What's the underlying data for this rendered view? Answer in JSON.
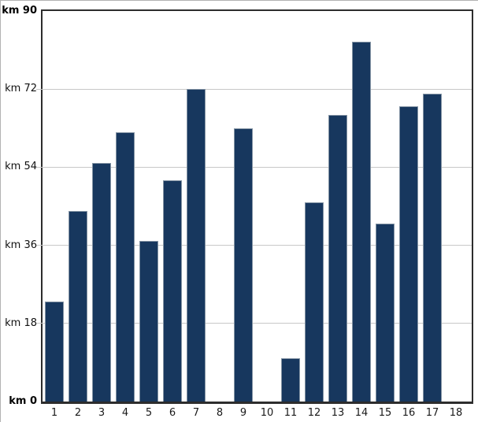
{
  "chart_data": {
    "type": "bar",
    "title": "",
    "unit": "km",
    "categories": [
      "1",
      "2",
      "3",
      "4",
      "5",
      "6",
      "7",
      "8",
      "9",
      "10",
      "11",
      "12",
      "13",
      "14",
      "15",
      "16",
      "17",
      "18"
    ],
    "values": [
      23,
      44,
      55,
      62,
      37,
      51,
      72,
      null,
      63,
      null,
      10,
      46,
      66,
      83,
      41,
      68,
      71,
      null
    ],
    "ylim": [
      0,
      90
    ],
    "yticks": [
      {
        "value": 0,
        "label": "km 0",
        "bold": true
      },
      {
        "value": 18,
        "label": "km 18",
        "bold": false
      },
      {
        "value": 36,
        "label": "km 36",
        "bold": false
      },
      {
        "value": 54,
        "label": "km 54",
        "bold": false
      },
      {
        "value": 72,
        "label": "km 72",
        "bold": false
      },
      {
        "value": 90,
        "label": "km 90",
        "bold": true
      }
    ],
    "grid": true,
    "legend": "none",
    "colors": {
      "bar_fill": "#17375e",
      "bar_border": "#8494a4",
      "axis": "#2d2d2d",
      "gridline": "#c8c8c8",
      "label_text": "#111111"
    }
  }
}
